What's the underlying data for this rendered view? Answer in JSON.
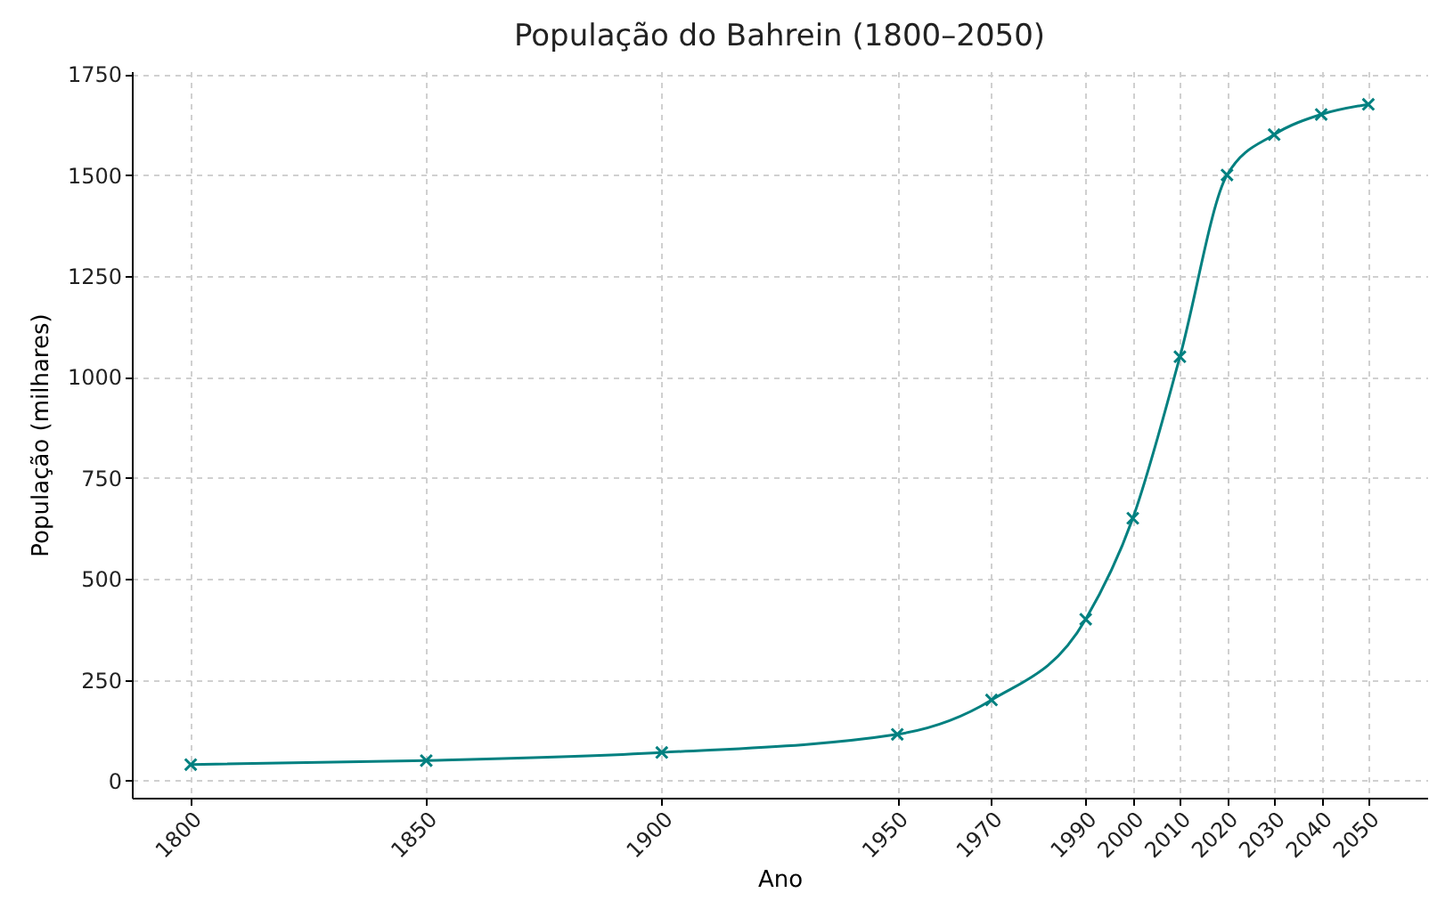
{
  "chart_data": {
    "type": "line",
    "title": "População do Bahrein (1800–2050)",
    "xlabel": "Ano",
    "ylabel": "População (milhares)",
    "x": [
      1800,
      1850,
      1900,
      1950,
      1970,
      1990,
      2000,
      2010,
      2020,
      2030,
      2040,
      2050
    ],
    "series": [
      {
        "color": "#008080",
        "values": [
          40,
          50,
          70,
          115,
          200,
          400,
          650,
          1050,
          1500,
          1600,
          1650,
          1675
        ]
      }
    ],
    "xlim": [
      1787.5,
      2062.5
    ],
    "xticks": [
      1800,
      1850,
      1900,
      1950,
      1970,
      1990,
      2000,
      2010,
      2020,
      2030,
      2040,
      2050
    ],
    "ylim": [
      -42,
      1757
    ],
    "yticks": [
      0,
      250,
      500,
      750,
      1000,
      1250,
      1500,
      1750
    ],
    "grid": true,
    "marker": "cross",
    "line_style": "solid"
  }
}
